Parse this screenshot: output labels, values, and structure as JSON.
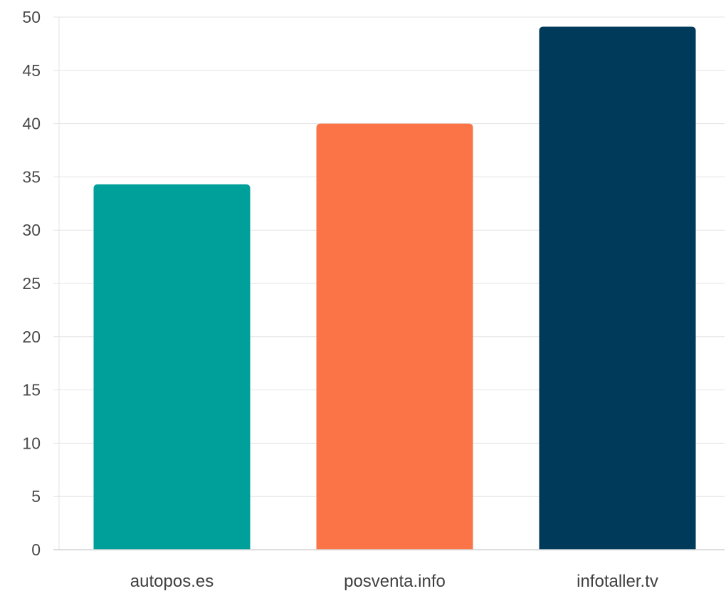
{
  "chart_data": {
    "type": "bar",
    "title": "",
    "xlabel": "",
    "ylabel": "",
    "categories": [
      "autopos.es",
      "posventa.info",
      "infotaller.tv"
    ],
    "values": [
      34.3,
      40,
      49.1
    ],
    "colors": [
      "#00a09a",
      "#fa7447",
      "#003a5a"
    ],
    "ylim": [
      0,
      50
    ],
    "yticks": [
      0,
      5,
      10,
      15,
      20,
      25,
      30,
      35,
      40,
      45,
      50
    ],
    "grid": true,
    "legend": "none"
  },
  "colors": {
    "grid": "#e3e3e3",
    "axis": "#d4d4d4",
    "tick_text": "#4a4a4a"
  }
}
